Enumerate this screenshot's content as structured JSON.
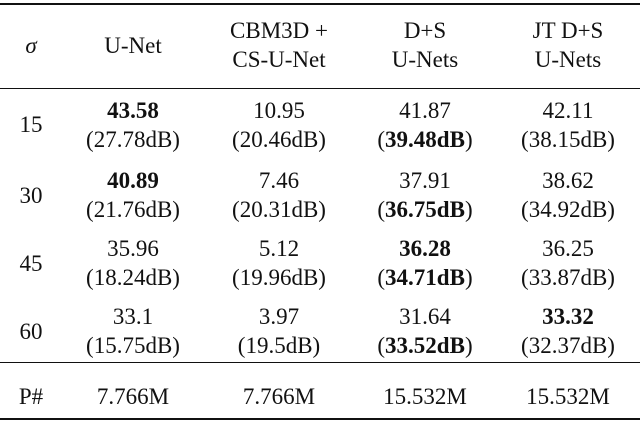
{
  "table": {
    "header": {
      "sigma": "σ",
      "col1": [
        "U-Net"
      ],
      "col2": [
        "CBM3D +",
        "CS-U-Net"
      ],
      "col3": [
        "D+S",
        "U-Nets"
      ],
      "col4": [
        "JT D+S",
        "U-Nets"
      ]
    },
    "rows": [
      {
        "sigma": "15",
        "unet": {
          "value": "43.58",
          "db": "(27.78dB)"
        },
        "cbm3d": {
          "value": "10.95",
          "db": "(20.46dB)"
        },
        "ds": {
          "value": "41.87",
          "db_open": "(",
          "db": "39.48dB",
          "db_close": ")"
        },
        "jt": {
          "value": "42.11",
          "db": "(38.15dB)"
        }
      },
      {
        "sigma": "30",
        "unet": {
          "value": "40.89",
          "db": "(21.76dB)"
        },
        "cbm3d": {
          "value": "7.46",
          "db": "(20.31dB)"
        },
        "ds": {
          "value": "37.91",
          "db_open": "(",
          "db": "36.75dB",
          "db_close": ")"
        },
        "jt": {
          "value": "38.62",
          "db": "(34.92dB)"
        }
      },
      {
        "sigma": "45",
        "unet": {
          "value": "35.96",
          "db": "(18.24dB)"
        },
        "cbm3d": {
          "value": "5.12",
          "db": "(19.96dB)"
        },
        "ds": {
          "value": "36.28",
          "db_open": "(",
          "db": "34.71dB",
          "db_close": ")"
        },
        "jt": {
          "value": "36.25",
          "db": "(33.87dB)"
        }
      },
      {
        "sigma": "60",
        "unet": {
          "value": "33.1",
          "db": "(15.75dB)"
        },
        "cbm3d": {
          "value": "3.97",
          "db": "(19.5dB)"
        },
        "ds": {
          "value": "31.64",
          "db_open": "(",
          "db": "33.52dB",
          "db_close": ")"
        },
        "jt": {
          "value": "33.32",
          "db": "(32.37dB)"
        }
      }
    ],
    "params": {
      "label": "P#",
      "unet": "7.766M",
      "cbm3d": "7.766M",
      "ds": "15.532M",
      "jt": "15.532M"
    }
  }
}
